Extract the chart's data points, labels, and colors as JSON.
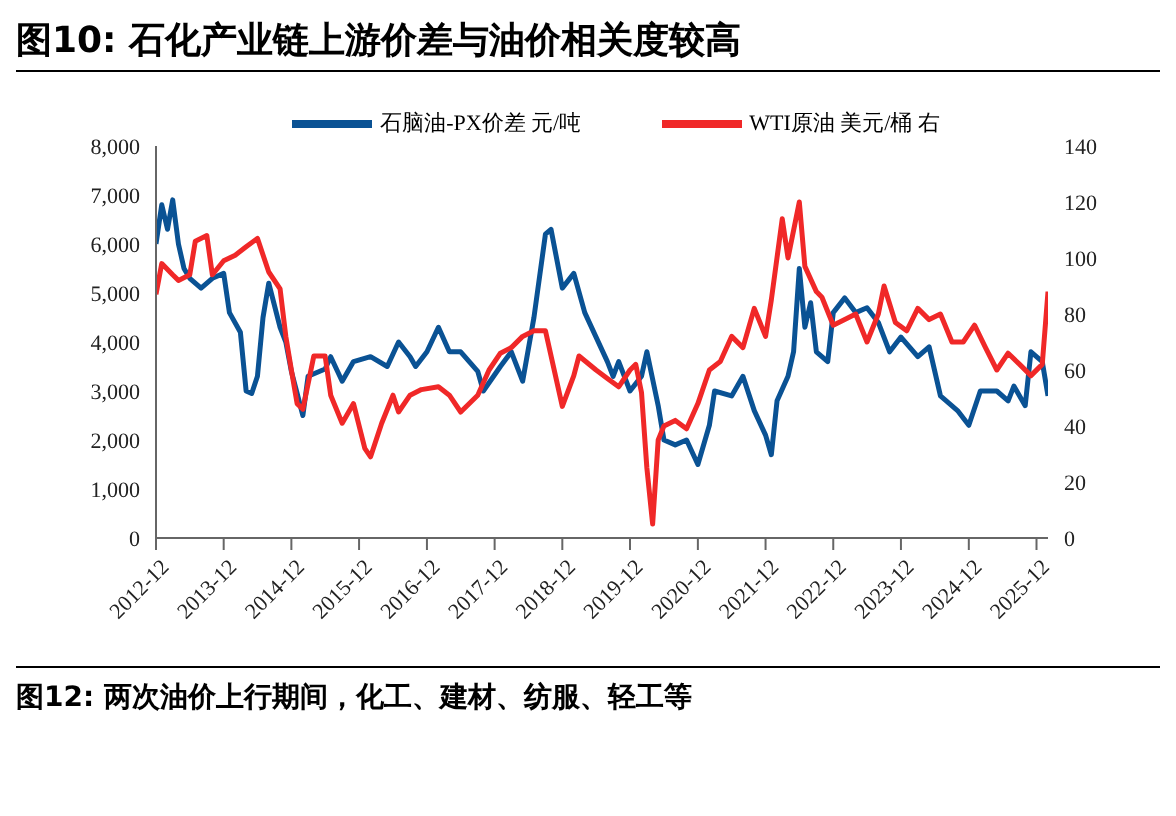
{
  "chart_data": {
    "type": "line",
    "title": "图10:  石化产业链上游价差与油价相关度较高",
    "annotations": [
      "图12:  两次油价上行期间，化工、建材、纺服、轻工等"
    ],
    "series": [
      {
        "name": "石脑油-PX价差 元/吨",
        "color": "#0a5294",
        "x": [
          "2012-12",
          "2013-01",
          "2013-02",
          "2013-03",
          "2013-04",
          "2013-05",
          "2013-06",
          "2013-08",
          "2013-10",
          "2013-12",
          "2014-01",
          "2014-03",
          "2014-04",
          "2014-05",
          "2014-06",
          "2014-07",
          "2014-08",
          "2014-10",
          "2014-11",
          "2014-12",
          "2015-02",
          "2015-03",
          "2015-06",
          "2015-07",
          "2015-09",
          "2015-11",
          "2016-02",
          "2016-05",
          "2016-07",
          "2016-09",
          "2016-10",
          "2016-12",
          "2017-02",
          "2017-04",
          "2017-06",
          "2017-09",
          "2017-10",
          "2018-01",
          "2018-03",
          "2018-05",
          "2018-07",
          "2018-09",
          "2018-10",
          "2018-12",
          "2019-02",
          "2019-04",
          "2019-06",
          "2019-08",
          "2019-09",
          "2019-10",
          "2019-12",
          "2020-02",
          "2020-03",
          "2020-05",
          "2020-06",
          "2020-08",
          "2020-10",
          "2020-12",
          "2021-02",
          "2021-03",
          "2021-06",
          "2021-08",
          "2021-10",
          "2021-12",
          "2022-01",
          "2022-02",
          "2022-04",
          "2022-05",
          "2022-06",
          "2022-07",
          "2022-08",
          "2022-09",
          "2022-11",
          "2022-12",
          "2023-02",
          "2023-04",
          "2023-06",
          "2023-08",
          "2023-10",
          "2023-12",
          "2024-03",
          "2024-05",
          "2024-07",
          "2024-10",
          "2024-12",
          "2025-02",
          "2025-05",
          "2025-07",
          "2025-08",
          "2025-10",
          "2025-11",
          "2026-01",
          "2026-02"
        ],
        "values": [
          6000,
          6800,
          6300,
          6900,
          6000,
          5500,
          5300,
          5100,
          5300,
          5400,
          4600,
          4200,
          3000,
          2950,
          3300,
          4500,
          5200,
          4300,
          4000,
          3400,
          2500,
          3300,
          3450,
          3700,
          3200,
          3600,
          3700,
          3500,
          4000,
          3700,
          3500,
          3800,
          4300,
          3800,
          3800,
          3400,
          3000,
          3500,
          3800,
          3200,
          4500,
          6200,
          6300,
          5100,
          5400,
          4600,
          4100,
          3600,
          3300,
          3600,
          3000,
          3300,
          3800,
          2700,
          2000,
          1900,
          2000,
          1500,
          2300,
          3000,
          2900,
          3300,
          2600,
          2100,
          1700,
          2800,
          3300,
          3800,
          5500,
          4300,
          4800,
          3800,
          3600,
          4600,
          4900,
          4600,
          4700,
          4400,
          3800,
          4100,
          3700,
          3900,
          2900,
          2600,
          2300,
          3000,
          3000,
          2800,
          3100,
          2700,
          3800,
          3600,
          2900
        ]
      },
      {
        "name": "WTI原油 美元/桶 右",
        "color": "#f02828",
        "axis": "y2",
        "x": [
          "2012-12",
          "2013-01",
          "2013-03",
          "2013-04",
          "2013-06",
          "2013-07",
          "2013-09",
          "2013-10",
          "2013-12",
          "2014-02",
          "2014-04",
          "2014-06",
          "2014-08",
          "2014-10",
          "2014-11",
          "2014-12",
          "2015-01",
          "2015-02",
          "2015-04",
          "2015-06",
          "2015-07",
          "2015-09",
          "2015-11",
          "2016-01",
          "2016-02",
          "2016-04",
          "2016-06",
          "2016-07",
          "2016-09",
          "2016-11",
          "2017-02",
          "2017-04",
          "2017-06",
          "2017-09",
          "2017-11",
          "2018-01",
          "2018-03",
          "2018-05",
          "2018-07",
          "2018-09",
          "2018-12",
          "2019-02",
          "2019-03",
          "2019-06",
          "2019-08",
          "2019-10",
          "2019-12",
          "2020-01",
          "2020-02",
          "2020-03",
          "2020-04",
          "2020-05",
          "2020-06",
          "2020-08",
          "2020-10",
          "2020-12",
          "2021-02",
          "2021-04",
          "2021-06",
          "2021-08",
          "2021-10",
          "2021-12",
          "2022-01",
          "2022-03",
          "2022-04",
          "2022-06",
          "2022-07",
          "2022-09",
          "2022-10",
          "2022-12",
          "2023-02",
          "2023-04",
          "2023-06",
          "2023-08",
          "2023-09",
          "2023-11",
          "2024-01",
          "2024-03",
          "2024-05",
          "2024-07",
          "2024-09",
          "2024-11",
          "2025-01",
          "2025-03",
          "2025-05",
          "2025-07",
          "2025-09",
          "2025-11",
          "2026-01",
          "2026-02"
        ],
        "values": [
          87,
          98,
          94,
          92,
          94,
          106,
          108,
          94,
          99,
          101,
          104,
          107,
          95,
          89,
          72,
          60,
          48,
          46,
          65,
          65,
          51,
          41,
          48,
          32,
          29,
          41,
          51,
          45,
          51,
          53,
          54,
          51,
          45,
          51,
          60,
          66,
          68,
          72,
          74,
          74,
          47,
          58,
          65,
          60,
          57,
          54,
          60,
          62,
          52,
          25,
          5,
          35,
          40,
          42,
          39,
          48,
          60,
          63,
          72,
          68,
          82,
          72,
          85,
          114,
          100,
          120,
          97,
          88,
          86,
          76,
          78,
          80,
          70,
          80,
          90,
          77,
          74,
          82,
          78,
          80,
          70,
          70,
          76,
          68,
          60,
          66,
          62,
          58,
          62,
          88
        ]
      }
    ],
    "xlim": [
      "2012-12",
      "2026-02"
    ],
    "xticks": [
      "2012-12",
      "2013-12",
      "2014-12",
      "2015-12",
      "2016-12",
      "2017-12",
      "2018-12",
      "2019-12",
      "2020-12",
      "2021-12",
      "2022-12",
      "2023-12",
      "2024-12",
      "2025-12"
    ],
    "ylim": [
      0,
      8000
    ],
    "yticks": [
      0,
      {
        "value": 1000,
        "label": "1,000"
      },
      {
        "value": 2000,
        "label": "2,000"
      },
      {
        "value": 3000,
        "label": "3,000"
      },
      {
        "value": 4000,
        "label": "4,000"
      },
      {
        "value": 5000,
        "label": "5,000"
      },
      {
        "value": 6000,
        "label": "6,000"
      },
      {
        "value": 7000,
        "label": "7,000"
      },
      {
        "value": 8000,
        "label": "8,000"
      }
    ],
    "y2lim": [
      0,
      140
    ],
    "y2ticks": [
      0,
      20,
      40,
      60,
      80,
      100,
      120,
      140
    ],
    "grid": false,
    "legend": "top"
  }
}
